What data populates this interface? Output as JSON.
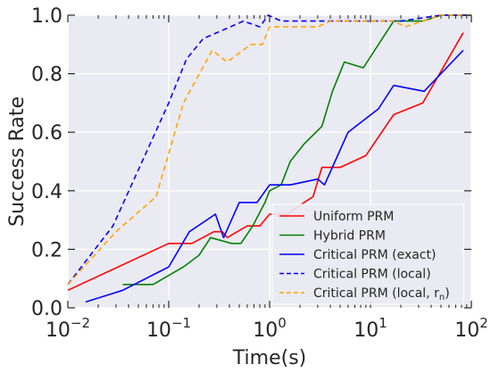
{
  "chart_data": {
    "type": "line",
    "title": "",
    "xlabel": "Time(s)",
    "ylabel": "Success Rate",
    "xscale": "log",
    "xlim": [
      0.01,
      100
    ],
    "ylim": [
      0.0,
      1.0
    ],
    "grid": true,
    "legend_position": "bottom-right",
    "x_ticks": [
      {
        "value": 0.01,
        "base": "10",
        "exp": "−2"
      },
      {
        "value": 0.1,
        "base": "10",
        "exp": "−1"
      },
      {
        "value": 1,
        "base": "10",
        "exp": "0"
      },
      {
        "value": 10,
        "base": "10",
        "exp": "1"
      },
      {
        "value": 100,
        "base": "10",
        "exp": "2"
      }
    ],
    "y_ticks": [
      {
        "value": 0.0,
        "label": "0.0"
      },
      {
        "value": 0.2,
        "label": "0.2"
      },
      {
        "value": 0.4,
        "label": "0.4"
      },
      {
        "value": 0.6,
        "label": "0.6"
      },
      {
        "value": 0.8,
        "label": "0.8"
      },
      {
        "value": 1.0,
        "label": "1.0"
      }
    ],
    "series": [
      {
        "name": "Uniform PRM",
        "color": "#ff0000",
        "dash": "solid",
        "points": [
          [
            0.01,
            0.06
          ],
          [
            0.1,
            0.22
          ],
          [
            0.17,
            0.22
          ],
          [
            0.28,
            0.26
          ],
          [
            0.34,
            0.26
          ],
          [
            0.38,
            0.24
          ],
          [
            0.6,
            0.28
          ],
          [
            0.8,
            0.28
          ],
          [
            1.0,
            0.32
          ],
          [
            1.5,
            0.32
          ],
          [
            2.2,
            0.36
          ],
          [
            2.7,
            0.38
          ],
          [
            3.3,
            0.48
          ],
          [
            5.0,
            0.48
          ],
          [
            9.0,
            0.52
          ],
          [
            17.0,
            0.66
          ],
          [
            33.0,
            0.7
          ],
          [
            83.0,
            0.94
          ]
        ]
      },
      {
        "name": "Hybrid PRM",
        "color": "#008000",
        "dash": "solid",
        "points": [
          [
            0.035,
            0.08
          ],
          [
            0.07,
            0.08
          ],
          [
            0.14,
            0.14
          ],
          [
            0.2,
            0.18
          ],
          [
            0.26,
            0.24
          ],
          [
            0.42,
            0.22
          ],
          [
            0.52,
            0.22
          ],
          [
            0.68,
            0.28
          ],
          [
            0.9,
            0.36
          ],
          [
            1.0,
            0.4
          ],
          [
            1.3,
            0.42
          ],
          [
            1.6,
            0.5
          ],
          [
            2.2,
            0.56
          ],
          [
            3.3,
            0.62
          ],
          [
            4.2,
            0.74
          ],
          [
            5.5,
            0.84
          ],
          [
            8.5,
            0.82
          ],
          [
            17.0,
            0.98
          ],
          [
            33.0,
            0.98
          ],
          [
            50.0,
            1.0
          ],
          [
            100.0,
            1.0
          ]
        ]
      },
      {
        "name": "Critical PRM (exact)",
        "color": "#0000ff",
        "dash": "solid",
        "points": [
          [
            0.015,
            0.02
          ],
          [
            0.035,
            0.06
          ],
          [
            0.1,
            0.14
          ],
          [
            0.16,
            0.26
          ],
          [
            0.29,
            0.32
          ],
          [
            0.35,
            0.24
          ],
          [
            0.5,
            0.36
          ],
          [
            0.75,
            0.36
          ],
          [
            1.0,
            0.42
          ],
          [
            1.6,
            0.42
          ],
          [
            3.0,
            0.44
          ],
          [
            3.5,
            0.42
          ],
          [
            6.0,
            0.6
          ],
          [
            12.0,
            0.68
          ],
          [
            17.0,
            0.76
          ],
          [
            34.0,
            0.74
          ],
          [
            83.0,
            0.88
          ]
        ]
      },
      {
        "name": "Critical PRM (local)",
        "color": "#0000ff",
        "dash": "dashed",
        "points": [
          [
            0.01,
            0.08
          ],
          [
            0.028,
            0.28
          ],
          [
            0.1,
            0.7
          ],
          [
            0.15,
            0.85
          ],
          [
            0.22,
            0.92
          ],
          [
            0.35,
            0.95
          ],
          [
            0.55,
            0.98
          ],
          [
            0.8,
            0.96
          ],
          [
            0.97,
            1.0
          ],
          [
            1.3,
            0.98
          ],
          [
            2.0,
            0.98
          ],
          [
            4.0,
            0.98
          ],
          [
            6.5,
            0.98
          ],
          [
            10.0,
            0.98
          ],
          [
            20.0,
            0.98
          ],
          [
            50.0,
            1.0
          ],
          [
            100.0,
            1.0
          ]
        ]
      },
      {
        "name": "Critical PRM (local, r_n)",
        "color": "#ffa500",
        "dash": "dashed",
        "points": [
          [
            0.01,
            0.08
          ],
          [
            0.03,
            0.26
          ],
          [
            0.075,
            0.38
          ],
          [
            0.14,
            0.7
          ],
          [
            0.27,
            0.88
          ],
          [
            0.38,
            0.84
          ],
          [
            0.65,
            0.9
          ],
          [
            0.85,
            0.9
          ],
          [
            1.0,
            0.96
          ],
          [
            2.0,
            0.96
          ],
          [
            3.0,
            0.96
          ],
          [
            4.0,
            0.98
          ],
          [
            9.0,
            0.98
          ],
          [
            17.0,
            0.98
          ],
          [
            22.0,
            0.96
          ],
          [
            50.0,
            1.0
          ],
          [
            100.0,
            1.0
          ]
        ]
      }
    ]
  }
}
